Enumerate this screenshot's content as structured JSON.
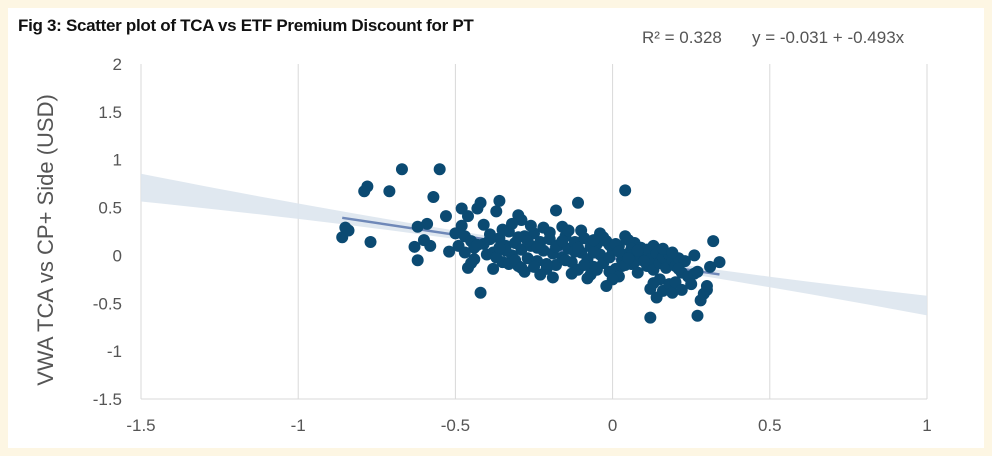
{
  "figure": {
    "title": "Fig 3: Scatter plot of TCA vs ETF Premium Discount for PT"
  },
  "chart_data": {
    "type": "scatter",
    "title": "",
    "xlabel": "",
    "ylabel": "VWA TCA vs CP+ Side (USD)",
    "xlim": [
      -1.5,
      1
    ],
    "ylim": [
      -1.5,
      2
    ],
    "xticks": [
      "-1.5",
      "-1",
      "-0.5",
      "0",
      "0.5",
      "1"
    ],
    "yticks": [
      "-1.5",
      "-1",
      "-0.5",
      "0",
      "0.5",
      "1",
      "1.5",
      "2"
    ],
    "grid": "vertical",
    "annotations": {
      "r_squared": "R² = 0.328",
      "equation": "y = -0.031 + -0.493x"
    },
    "trendline": {
      "intercept": -0.031,
      "slope": -0.493,
      "x_range": [
        -0.86,
        0.34
      ]
    },
    "colors": {
      "points": "#0b4a72",
      "trend": "#6f88b8",
      "band": "#dde5ee",
      "grid": "#d9d9d9"
    },
    "points": [
      [
        -0.85,
        0.29
      ],
      [
        -0.86,
        0.19
      ],
      [
        -0.84,
        0.26
      ],
      [
        -0.78,
        0.72
      ],
      [
        -0.79,
        0.67
      ],
      [
        -0.71,
        0.67
      ],
      [
        -0.67,
        0.9
      ],
      [
        -0.77,
        0.14
      ],
      [
        -0.55,
        0.9
      ],
      [
        -0.57,
        0.61
      ],
      [
        -0.62,
        0.3
      ],
      [
        -0.63,
        0.09
      ],
      [
        -0.62,
        -0.05
      ],
      [
        -0.59,
        0.33
      ],
      [
        -0.6,
        0.16
      ],
      [
        -0.58,
        0.1
      ],
      [
        -0.53,
        0.41
      ],
      [
        -0.52,
        0.04
      ],
      [
        -0.48,
        0.49
      ],
      [
        -0.48,
        0.31
      ],
      [
        -0.46,
        0.41
      ],
      [
        -0.42,
        0.55
      ],
      [
        -0.43,
        0.49
      ],
      [
        -0.36,
        0.57
      ],
      [
        -0.37,
        0.46
      ],
      [
        -0.3,
        0.42
      ],
      [
        -0.29,
        0.37
      ],
      [
        -0.18,
        0.47
      ],
      [
        -0.11,
        0.55
      ],
      [
        0.04,
        0.68
      ],
      [
        -0.46,
        -0.13
      ],
      [
        -0.42,
        -0.39
      ],
      [
        -0.47,
        0.2
      ],
      [
        -0.45,
        0.15
      ],
      [
        -0.44,
        0.08
      ],
      [
        -0.41,
        0.12
      ],
      [
        -0.4,
        0.01
      ],
      [
        -0.39,
        0.22
      ],
      [
        -0.38,
        0.03
      ],
      [
        -0.36,
        0.18
      ],
      [
        -0.35,
        -0.07
      ],
      [
        -0.34,
        0.1
      ],
      [
        -0.33,
        0.25
      ],
      [
        -0.32,
        0.0
      ],
      [
        -0.31,
        0.13
      ],
      [
        -0.3,
        -0.11
      ],
      [
        -0.29,
        0.06
      ],
      [
        -0.28,
        0.2
      ],
      [
        -0.27,
        -0.03
      ],
      [
        -0.26,
        0.1
      ],
      [
        -0.25,
        0.23
      ],
      [
        -0.24,
        -0.06
      ],
      [
        -0.23,
        0.14
      ],
      [
        -0.22,
        0.05
      ],
      [
        -0.21,
        -0.14
      ],
      [
        -0.2,
        0.17
      ],
      [
        -0.19,
        0.02
      ],
      [
        -0.18,
        -0.1
      ],
      [
        -0.17,
        0.11
      ],
      [
        -0.16,
        -0.02
      ],
      [
        -0.15,
        0.2
      ],
      [
        -0.14,
        0.07
      ],
      [
        -0.13,
        -0.07
      ],
      [
        -0.12,
        0.14
      ],
      [
        -0.11,
        -0.15
      ],
      [
        -0.1,
        0.03
      ],
      [
        -0.09,
        0.18
      ],
      [
        -0.08,
        -0.04
      ],
      [
        -0.07,
        0.09
      ],
      [
        -0.06,
        -0.12
      ],
      [
        -0.05,
        0.12
      ],
      [
        -0.04,
        0.01
      ],
      [
        -0.03,
        -0.08
      ],
      [
        -0.02,
        0.15
      ],
      [
        -0.01,
        -0.02
      ],
      [
        0.0,
        0.06
      ],
      [
        0.01,
        -0.14
      ],
      [
        0.02,
        0.1
      ],
      [
        0.03,
        -0.05
      ],
      [
        0.04,
        0.2
      ],
      [
        0.05,
        0.02
      ],
      [
        0.06,
        -0.09
      ],
      [
        0.07,
        0.13
      ],
      [
        0.08,
        -0.01
      ],
      [
        0.09,
        0.08
      ],
      [
        -0.38,
        -0.14
      ],
      [
        -0.33,
        -0.09
      ],
      [
        -0.28,
        -0.17
      ],
      [
        -0.22,
        0.29
      ],
      [
        -0.19,
        -0.23
      ],
      [
        -0.16,
        0.3
      ],
      [
        -0.13,
        -0.19
      ],
      [
        -0.1,
        0.26
      ],
      [
        -0.07,
        -0.2
      ],
      [
        -0.04,
        0.23
      ],
      [
        -0.01,
        -0.17
      ],
      [
        0.02,
        -0.22
      ],
      [
        0.05,
        0.16
      ],
      [
        0.08,
        -0.18
      ],
      [
        -0.26,
        0.31
      ],
      [
        -0.23,
        -0.2
      ],
      [
        -0.32,
        0.33
      ],
      [
        -0.08,
        -0.24
      ],
      [
        -0.03,
        0.19
      ],
      [
        0.0,
        -0.25
      ],
      [
        -0.35,
        0.27
      ],
      [
        -0.41,
        0.32
      ],
      [
        -0.44,
        -0.04
      ],
      [
        -0.37,
        -0.02
      ],
      [
        -0.21,
        -0.09
      ],
      [
        -0.05,
        -0.15
      ],
      [
        0.03,
        -0.11
      ],
      [
        0.06,
        0.07
      ],
      [
        -0.12,
        0.04
      ],
      [
        -0.15,
        -0.05
      ],
      [
        -0.02,
        -0.32
      ],
      [
        0.04,
        -0.1
      ],
      [
        0.06,
        0.0
      ],
      [
        0.07,
        -0.07
      ],
      [
        0.09,
        -0.01
      ],
      [
        0.1,
        0.03
      ],
      [
        0.11,
        -0.11
      ],
      [
        0.11,
        0.06
      ],
      [
        0.12,
        -0.04
      ],
      [
        0.13,
        0.1
      ],
      [
        0.13,
        -0.15
      ],
      [
        0.14,
        0.02
      ],
      [
        0.15,
        -0.08
      ],
      [
        0.16,
        -0.02
      ],
      [
        0.17,
        -0.13
      ],
      [
        0.18,
        0.01
      ],
      [
        0.19,
        -0.05
      ],
      [
        0.2,
        -0.11
      ],
      [
        0.21,
        -0.03
      ],
      [
        0.22,
        -0.18
      ],
      [
        0.15,
        -0.25
      ],
      [
        0.14,
        -0.44
      ],
      [
        0.16,
        -0.37
      ],
      [
        0.18,
        -0.3
      ],
      [
        0.19,
        -0.39
      ],
      [
        0.12,
        -0.35
      ],
      [
        0.2,
        -0.28
      ],
      [
        0.22,
        -0.36
      ],
      [
        0.24,
        -0.22
      ],
      [
        0.25,
        -0.3
      ],
      [
        0.26,
        -0.19
      ],
      [
        0.27,
        -0.17
      ],
      [
        0.28,
        -0.47
      ],
      [
        0.29,
        -0.4
      ],
      [
        0.3,
        -0.36
      ],
      [
        0.3,
        -0.32
      ],
      [
        0.31,
        -0.12
      ],
      [
        0.32,
        0.15
      ],
      [
        0.34,
        -0.07
      ],
      [
        0.26,
        0.0
      ],
      [
        0.12,
        -0.65
      ],
      [
        0.27,
        -0.63
      ],
      [
        0.16,
        0.07
      ],
      [
        0.23,
        -0.06
      ],
      [
        0.19,
        0.03
      ],
      [
        0.21,
        -0.14
      ],
      [
        0.13,
        -0.29
      ],
      [
        -0.25,
        -0.12
      ],
      [
        -0.2,
        0.24
      ],
      [
        -0.14,
        0.26
      ],
      [
        -0.06,
        0.16
      ],
      [
        -0.01,
        0.11
      ],
      [
        0.01,
        0.12
      ],
      [
        -0.3,
        0.19
      ],
      [
        -0.27,
        0.15
      ],
      [
        -0.43,
        0.11
      ],
      [
        -0.39,
        0.17
      ],
      [
        -0.34,
        0.05
      ],
      [
        -0.36,
        0.08
      ],
      [
        -0.31,
        -0.05
      ],
      [
        -0.29,
        -0.13
      ],
      [
        -0.24,
        0.08
      ],
      [
        -0.18,
        0.09
      ],
      [
        -0.16,
        0.15
      ],
      [
        -0.11,
        0.08
      ],
      [
        -0.09,
        -0.1
      ],
      [
        -0.06,
        0.03
      ],
      [
        0.02,
        0.04
      ],
      [
        0.05,
        -0.03
      ],
      [
        0.08,
        0.05
      ],
      [
        0.1,
        -0.06
      ],
      [
        -0.49,
        0.1
      ],
      [
        -0.5,
        0.23
      ],
      [
        -0.47,
        0.03
      ],
      [
        -0.45,
        -0.08
      ]
    ]
  }
}
